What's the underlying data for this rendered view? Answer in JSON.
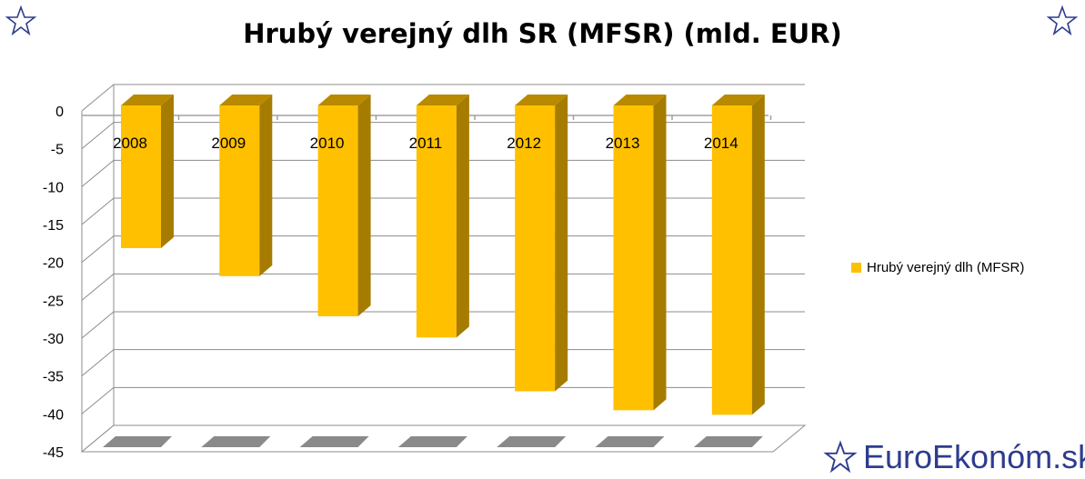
{
  "title": "Hrubý verejný dlh SR (MFSR) (mld. EUR)",
  "brand": {
    "text": "EuroEkonóm.sk",
    "icon": "star-outline-icon",
    "color": "#2d3c8f"
  },
  "decorations": {
    "top_left": "star-outline-icon",
    "top_right": "star-outline-icon"
  },
  "chart_data": {
    "type": "bar",
    "style": "3d",
    "title": "Hrubý verejný dlh SR (MFSR) (mld. EUR)",
    "categories": [
      "2008",
      "2009",
      "2010",
      "2011",
      "2012",
      "2013",
      "2014"
    ],
    "series": [
      {
        "name": "Hrubý verejný dlh (MFSR)",
        "values": [
          -18.6,
          -22.3,
          -27.6,
          -30.4,
          -37.5,
          -40.0,
          -40.6
        ],
        "color": "#ffc000",
        "side_color": "#a67c00",
        "top_color": "#b98a00"
      }
    ],
    "yticks": [
      "0",
      "-5",
      "-10",
      "-15",
      "-20",
      "-25",
      "-30",
      "-35",
      "-40",
      "-45"
    ],
    "ylim": [
      -45,
      0
    ],
    "grid": true,
    "legend": "right"
  }
}
